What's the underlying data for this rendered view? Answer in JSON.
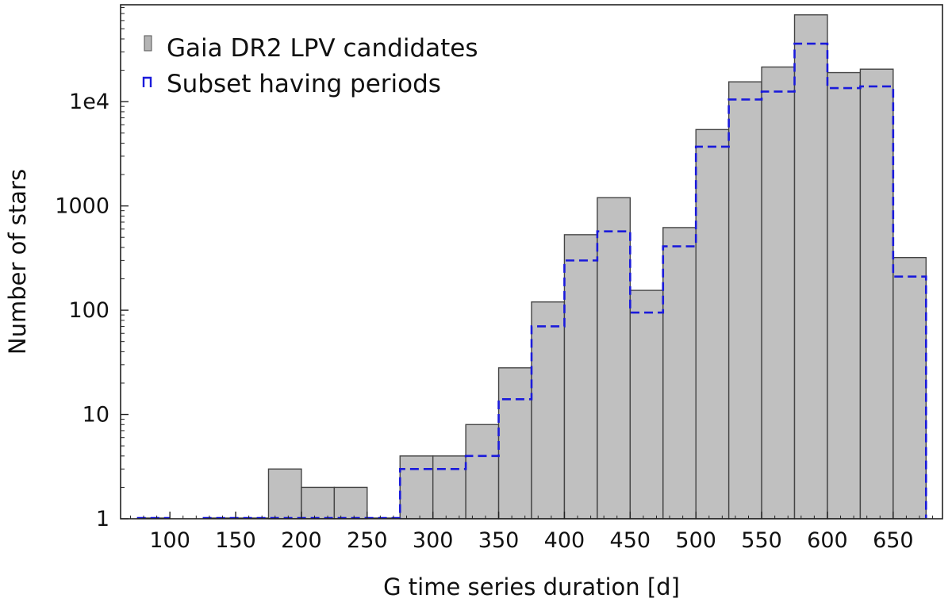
{
  "chart_data": {
    "type": "bar",
    "scale_y": "log",
    "xlabel": "G time series duration  [d]",
    "ylabel": "Number of stars",
    "xlim": [
      62.5,
      687.5
    ],
    "ylim": [
      1,
      85000
    ],
    "bin_width": 25,
    "x_ticks": [
      100,
      150,
      200,
      250,
      300,
      350,
      400,
      450,
      500,
      550,
      600,
      650
    ],
    "x_tick_labels": [
      "100",
      "150",
      "200",
      "250",
      "300",
      "350",
      "400",
      "450",
      "500",
      "550",
      "600",
      "650"
    ],
    "y_ticks": [
      1,
      10,
      100,
      1000,
      10000
    ],
    "y_tick_labels": [
      "1",
      "10",
      "100",
      "1000",
      "1e4"
    ],
    "bin_centers": [
      87.5,
      112.5,
      137.5,
      162.5,
      187.5,
      212.5,
      237.5,
      262.5,
      287.5,
      312.5,
      337.5,
      362.5,
      387.5,
      412.5,
      437.5,
      462.5,
      487.5,
      512.5,
      537.5,
      562.5,
      587.5,
      612.5,
      637.5,
      662.5
    ],
    "legend_position": "top-left",
    "series": [
      {
        "name": "Gaia DR2 LPV candidates",
        "style": "filled-bars",
        "color": "#c0c0c0",
        "edge_color": "#444444",
        "values": [
          1,
          0,
          1,
          1,
          3,
          2,
          2,
          1,
          4,
          4,
          8,
          28,
          120,
          530,
          1200,
          155,
          620,
          5400,
          15500,
          21500,
          68000,
          19000,
          20500,
          320
        ]
      },
      {
        "name": "Subset having periods",
        "style": "dashed-step",
        "color": "#1a1adb",
        "values": [
          1,
          0,
          1,
          1,
          1,
          1,
          1,
          1,
          3,
          3,
          4,
          14,
          70,
          300,
          570,
          95,
          410,
          3700,
          10500,
          12500,
          36000,
          13500,
          14000,
          210
        ]
      }
    ]
  }
}
